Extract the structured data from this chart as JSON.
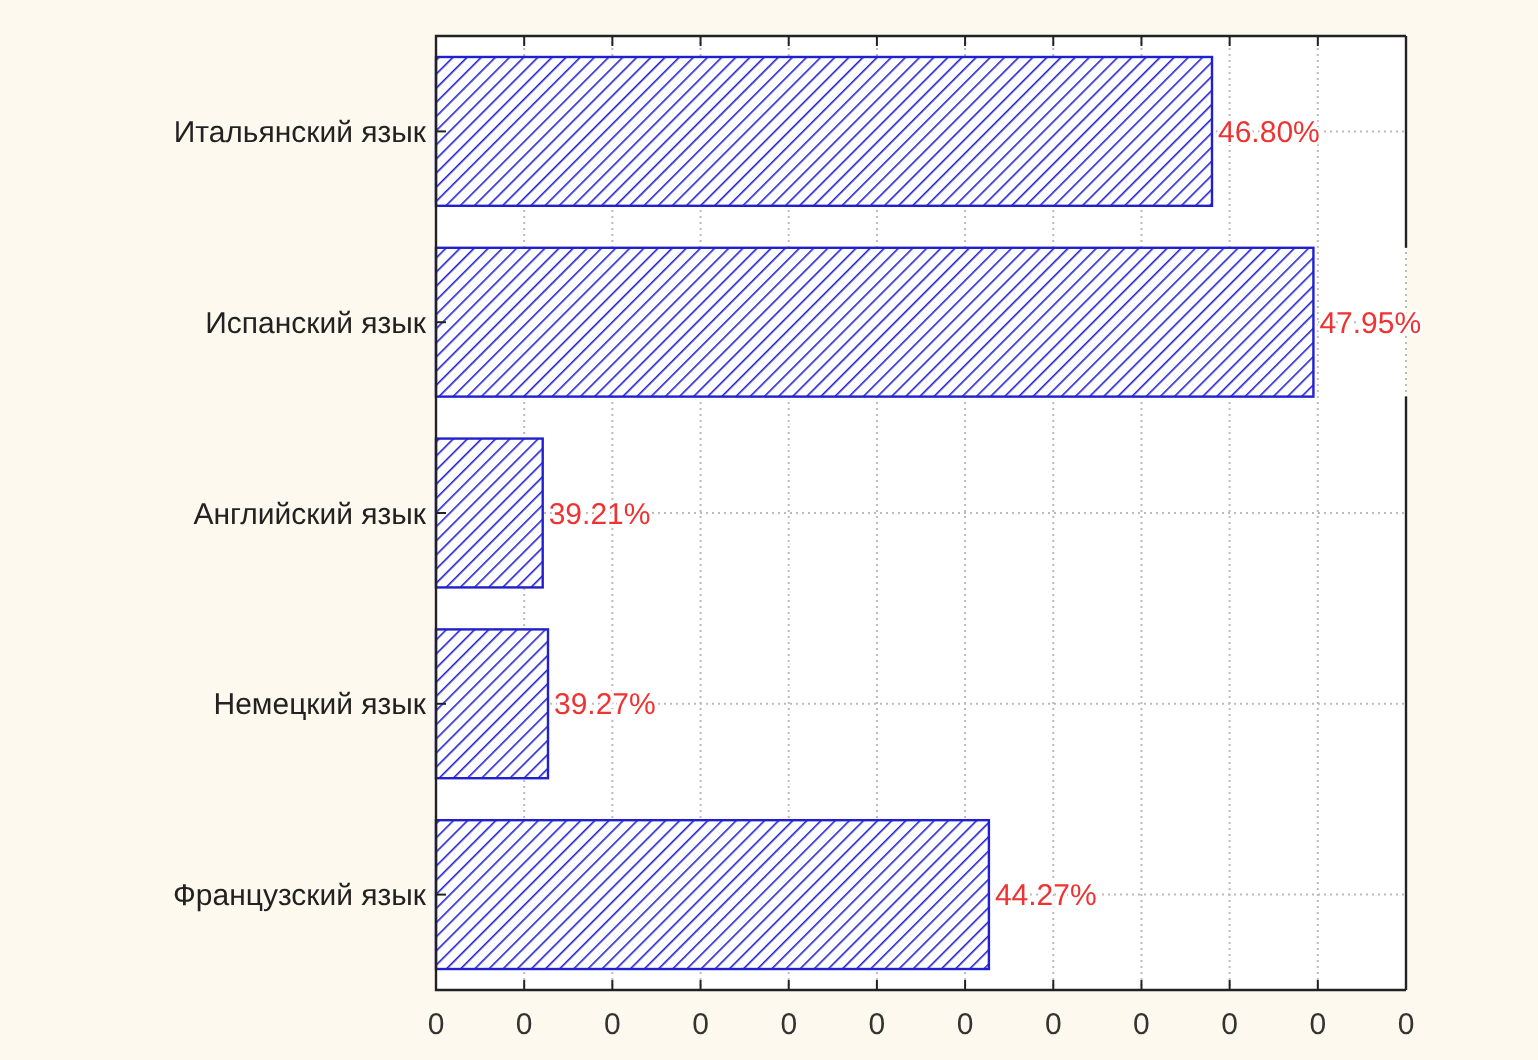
{
  "chart_data": {
    "type": "bar",
    "orientation": "horizontal",
    "categories": [
      "Итальянский язык",
      "Испанский язык",
      "Английский язык",
      "Немецкий язык",
      "Французский язык"
    ],
    "values": [
      46.8,
      47.95,
      39.21,
      39.27,
      44.27
    ],
    "value_labels": [
      "46.80%",
      "47.95%",
      "39.21%",
      "39.27%",
      "44.27%"
    ],
    "color": "#2020d0",
    "xlim": [
      38,
      49
    ],
    "xticks": [
      {
        "value": 38,
        "label": null
      },
      {
        "value": 39,
        "label": null
      },
      {
        "value": 40,
        "label": null
      },
      {
        "value": 41,
        "label": null
      },
      {
        "value": 42,
        "label": null
      },
      {
        "value": 43,
        "label": null
      },
      {
        "value": 44,
        "label": null
      },
      {
        "value": 45,
        "label": null
      },
      {
        "value": 46,
        "label": null
      },
      {
        "value": 47,
        "label": null
      },
      {
        "value": 48,
        "label": null
      },
      {
        "value": 49,
        "label": null
      }
    ],
    "annotations": [
      "0",
      "0",
      "0",
      "0",
      "0",
      "0",
      "0",
      "0",
      "0",
      "0",
      "0",
      "0"
    ],
    "grid": true
  }
}
